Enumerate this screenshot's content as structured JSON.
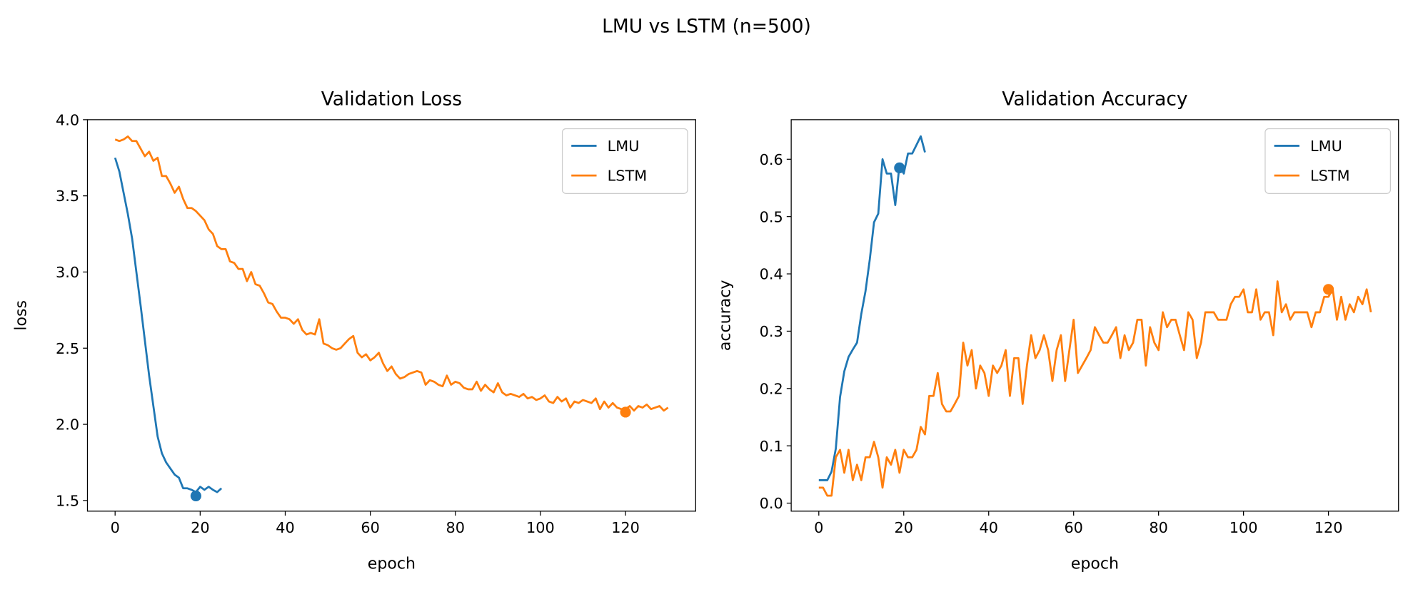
{
  "title": "LMU vs LSTM (n=500)",
  "chart_data": [
    {
      "type": "line",
      "title": "Validation Loss",
      "xlabel": "epoch",
      "ylabel": "loss",
      "xlim": [
        -6.5,
        136.5
      ],
      "ylim": [
        1.43,
        4.0
      ],
      "xticks": [
        0,
        20,
        40,
        60,
        80,
        100,
        120
      ],
      "yticks": [
        1.5,
        {
          "value": 2.0,
          "label": "2.0"
        },
        2.5,
        {
          "value": 3.0,
          "label": "3.0"
        },
        3.5,
        {
          "value": 4.0,
          "label": "4.0"
        }
      ],
      "legend": "upper right",
      "series": [
        {
          "name": "LMU",
          "color": "#1f77b4",
          "x": [
            0,
            1,
            2,
            3,
            4,
            5,
            6,
            7,
            8,
            9,
            10,
            11,
            12,
            13,
            14,
            15,
            16,
            17,
            18,
            19,
            20,
            21,
            22,
            23,
            24,
            25
          ],
          "values": [
            3.75,
            3.66,
            3.52,
            3.38,
            3.22,
            3.0,
            2.78,
            2.55,
            2.32,
            2.12,
            1.92,
            1.81,
            1.75,
            1.71,
            1.67,
            1.65,
            1.58,
            1.58,
            1.57,
            1.555,
            1.59,
            1.57,
            1.59,
            1.57,
            1.555,
            1.58
          ],
          "best": {
            "x": 19,
            "y": 1.53
          }
        },
        {
          "name": "LSTM",
          "color": "#ff7f0e",
          "x": [
            0,
            1,
            2,
            3,
            4,
            5,
            6,
            7,
            8,
            9,
            10,
            11,
            12,
            13,
            14,
            15,
            16,
            17,
            18,
            19,
            20,
            21,
            22,
            23,
            24,
            25,
            26,
            27,
            28,
            29,
            30,
            31,
            32,
            33,
            34,
            35,
            36,
            37,
            38,
            39,
            40,
            41,
            42,
            43,
            44,
            45,
            46,
            47,
            48,
            49,
            50,
            51,
            52,
            53,
            54,
            55,
            56,
            57,
            58,
            59,
            60,
            61,
            62,
            63,
            64,
            65,
            66,
            67,
            68,
            69,
            70,
            71,
            72,
            73,
            74,
            75,
            76,
            77,
            78,
            79,
            80,
            81,
            82,
            83,
            84,
            85,
            86,
            87,
            88,
            89,
            90,
            91,
            92,
            93,
            94,
            95,
            96,
            97,
            98,
            99,
            100,
            101,
            102,
            103,
            104,
            105,
            106,
            107,
            108,
            109,
            110,
            111,
            112,
            113,
            114,
            115,
            116,
            117,
            118,
            119,
            120,
            121,
            122,
            123,
            124,
            125,
            126,
            127,
            128,
            129,
            130
          ],
          "values": [
            3.87,
            3.86,
            3.87,
            3.89,
            3.86,
            3.86,
            3.81,
            3.76,
            3.79,
            3.73,
            3.75,
            3.63,
            3.63,
            3.58,
            3.52,
            3.56,
            3.48,
            3.42,
            3.42,
            3.4,
            3.37,
            3.34,
            3.28,
            3.25,
            3.17,
            3.15,
            3.15,
            3.07,
            3.06,
            3.02,
            3.02,
            2.94,
            3.0,
            2.92,
            2.91,
            2.86,
            2.8,
            2.79,
            2.74,
            2.7,
            2.7,
            2.69,
            2.66,
            2.69,
            2.62,
            2.59,
            2.6,
            2.59,
            2.69,
            2.53,
            2.52,
            2.5,
            2.49,
            2.5,
            2.53,
            2.56,
            2.58,
            2.47,
            2.44,
            2.46,
            2.42,
            2.44,
            2.47,
            2.4,
            2.35,
            2.38,
            2.33,
            2.3,
            2.31,
            2.33,
            2.34,
            2.35,
            2.34,
            2.26,
            2.29,
            2.28,
            2.26,
            2.25,
            2.32,
            2.26,
            2.28,
            2.27,
            2.24,
            2.23,
            2.23,
            2.28,
            2.22,
            2.26,
            2.23,
            2.21,
            2.27,
            2.21,
            2.19,
            2.2,
            2.19,
            2.18,
            2.2,
            2.17,
            2.18,
            2.16,
            2.17,
            2.19,
            2.15,
            2.14,
            2.18,
            2.15,
            2.17,
            2.11,
            2.15,
            2.14,
            2.16,
            2.15,
            2.14,
            2.17,
            2.1,
            2.15,
            2.11,
            2.14,
            2.11,
            2.1,
            2.1,
            2.12,
            2.09,
            2.12,
            2.11,
            2.13,
            2.1,
            2.11,
            2.12,
            2.09,
            2.11
          ],
          "best": {
            "x": 120,
            "y": 2.08
          }
        }
      ]
    },
    {
      "type": "line",
      "title": "Validation Accuracy",
      "xlabel": "epoch",
      "ylabel": "accuracy",
      "xlim": [
        -6.5,
        136.5
      ],
      "ylim": [
        -0.014,
        0.669
      ],
      "xticks": [
        0,
        20,
        40,
        60,
        80,
        100,
        120
      ],
      "yticks": [
        {
          "value": 0.0,
          "label": "0.0"
        },
        0.1,
        0.2,
        0.3,
        0.4,
        0.5,
        0.6
      ],
      "legend": "upper right",
      "series": [
        {
          "name": "LMU",
          "color": "#1f77b4",
          "x": [
            0,
            1,
            2,
            3,
            4,
            5,
            6,
            7,
            8,
            9,
            10,
            11,
            12,
            13,
            14,
            15,
            16,
            17,
            18,
            19,
            20,
            21,
            22,
            23,
            24,
            25
          ],
          "values": [
            0.04,
            0.04,
            0.04,
            0.055,
            0.095,
            0.185,
            0.23,
            0.255,
            0.268,
            0.28,
            0.33,
            0.37,
            0.425,
            0.49,
            0.505,
            0.6,
            0.575,
            0.575,
            0.52,
            0.59,
            0.575,
            0.61,
            0.61,
            0.625,
            0.64,
            0.612
          ],
          "best": {
            "x": 19,
            "y": 0.585
          }
        },
        {
          "name": "LSTM",
          "color": "#ff7f0e",
          "x": [
            0,
            1,
            2,
            3,
            4,
            5,
            6,
            7,
            8,
            9,
            10,
            11,
            12,
            13,
            14,
            15,
            16,
            17,
            18,
            19,
            20,
            21,
            22,
            23,
            24,
            25,
            26,
            27,
            28,
            29,
            30,
            31,
            32,
            33,
            34,
            35,
            36,
            37,
            38,
            39,
            40,
            41,
            42,
            43,
            44,
            45,
            46,
            47,
            48,
            49,
            50,
            51,
            52,
            53,
            54,
            55,
            56,
            57,
            58,
            59,
            60,
            61,
            62,
            63,
            64,
            65,
            66,
            67,
            68,
            69,
            70,
            71,
            72,
            73,
            74,
            75,
            76,
            77,
            78,
            79,
            80,
            81,
            82,
            83,
            84,
            85,
            86,
            87,
            88,
            89,
            90,
            91,
            92,
            93,
            94,
            95,
            96,
            97,
            98,
            99,
            100,
            101,
            102,
            103,
            104,
            105,
            106,
            107,
            108,
            109,
            110,
            111,
            112,
            113,
            114,
            115,
            116,
            117,
            118,
            119,
            120,
            121,
            122,
            123,
            124,
            125,
            126,
            127,
            128,
            129,
            130
          ],
          "values": [
            0.027,
            0.027,
            0.013,
            0.013,
            0.08,
            0.093,
            0.053,
            0.093,
            0.04,
            0.067,
            0.04,
            0.08,
            0.08,
            0.107,
            0.08,
            0.027,
            0.08,
            0.067,
            0.093,
            0.053,
            0.093,
            0.08,
            0.08,
            0.093,
            0.133,
            0.12,
            0.187,
            0.187,
            0.227,
            0.173,
            0.16,
            0.16,
            0.173,
            0.187,
            0.28,
            0.24,
            0.267,
            0.2,
            0.24,
            0.227,
            0.187,
            0.24,
            0.227,
            0.24,
            0.267,
            0.187,
            0.253,
            0.253,
            0.173,
            0.24,
            0.293,
            0.253,
            0.267,
            0.293,
            0.267,
            0.213,
            0.267,
            0.293,
            0.213,
            0.267,
            0.32,
            0.227,
            0.24,
            0.253,
            0.267,
            0.307,
            0.293,
            0.28,
            0.28,
            0.293,
            0.307,
            0.253,
            0.293,
            0.267,
            0.28,
            0.32,
            0.32,
            0.24,
            0.307,
            0.28,
            0.267,
            0.333,
            0.307,
            0.32,
            0.32,
            0.293,
            0.267,
            0.333,
            0.32,
            0.253,
            0.28,
            0.333,
            0.333,
            0.333,
            0.32,
            0.32,
            0.32,
            0.347,
            0.36,
            0.36,
            0.373,
            0.333,
            0.333,
            0.373,
            0.32,
            0.333,
            0.333,
            0.293,
            0.387,
            0.333,
            0.347,
            0.32,
            0.333,
            0.333,
            0.333,
            0.333,
            0.307,
            0.333,
            0.333,
            0.36,
            0.36,
            0.373,
            0.32,
            0.36,
            0.32,
            0.347,
            0.333,
            0.36,
            0.347,
            0.373,
            0.333
          ],
          "best": {
            "x": 120,
            "y": 0.373
          }
        }
      ]
    }
  ]
}
